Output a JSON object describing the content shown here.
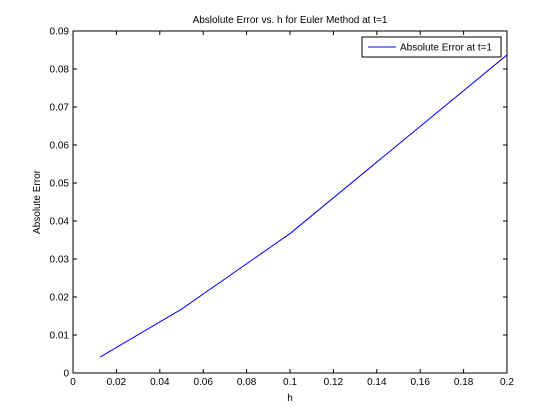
{
  "chart_data": {
    "type": "line",
    "title": "Abslolute Error vs. h for Euler Method at t=1",
    "xlabel": "h",
    "ylabel": "Absolute Error",
    "xlim": [
      0,
      0.2
    ],
    "ylim": [
      0,
      0.09
    ],
    "xticks": [
      "0",
      "0.02",
      "0.04",
      "0.06",
      "0.08",
      "0.1",
      "0.12",
      "0.14",
      "0.16",
      "0.18",
      "0.2"
    ],
    "yticks": [
      "0",
      "0.01",
      "0.02",
      "0.03",
      "0.04",
      "0.05",
      "0.06",
      "0.07",
      "0.08",
      "0.09"
    ],
    "grid": false,
    "legend_position": "top-right",
    "series": [
      {
        "name": "Absolute Error at t=1",
        "color": "#0000ff",
        "x": [
          0.0125,
          0.025,
          0.05,
          0.1,
          0.2
        ],
        "y": [
          0.0042,
          0.0084,
          0.0168,
          0.0367,
          0.0837
        ]
      }
    ]
  }
}
